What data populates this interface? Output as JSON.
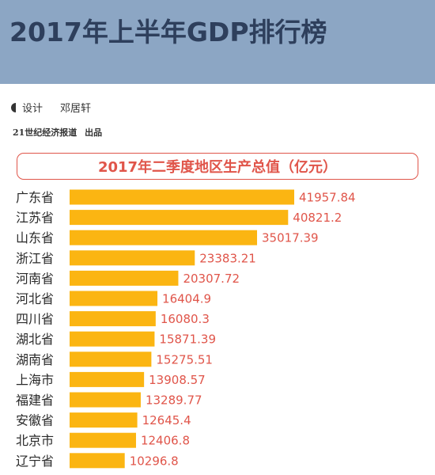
{
  "header": {
    "title": "2017年上半年GDP排行榜"
  },
  "credit": {
    "role": "设计",
    "name": "邓居轩"
  },
  "publisher": {
    "org": "21世纪经济报道",
    "suffix": "出品"
  },
  "chart_data": {
    "type": "bar",
    "orientation": "horizontal",
    "title": "2017年二季度地区生产总值（亿元）",
    "categories": [
      "广东省",
      "江苏省",
      "山东省",
      "浙江省",
      "河南省",
      "河北省",
      "四川省",
      "湖北省",
      "湖南省",
      "上海市",
      "福建省",
      "安徽省",
      "北京市",
      "辽宁省"
    ],
    "values": [
      41957.84,
      40821.2,
      35017.39,
      23383.21,
      20307.72,
      16404.9,
      16080.3,
      15871.39,
      15275.51,
      13908.57,
      13289.77,
      12645.4,
      12406.8,
      10296.8
    ],
    "value_labels": [
      "41957.84",
      "40821.2",
      "35017.39",
      "23383.21",
      "20307.72",
      "16404.9",
      "16080.3",
      "15871.39",
      "15275.51",
      "13908.57",
      "13289.77",
      "12645.4",
      "12406.8",
      "10296.8"
    ],
    "bar_color": "#fbb512",
    "value_label_color": "#e0554a",
    "xlim": [
      0,
      41957.84
    ]
  }
}
